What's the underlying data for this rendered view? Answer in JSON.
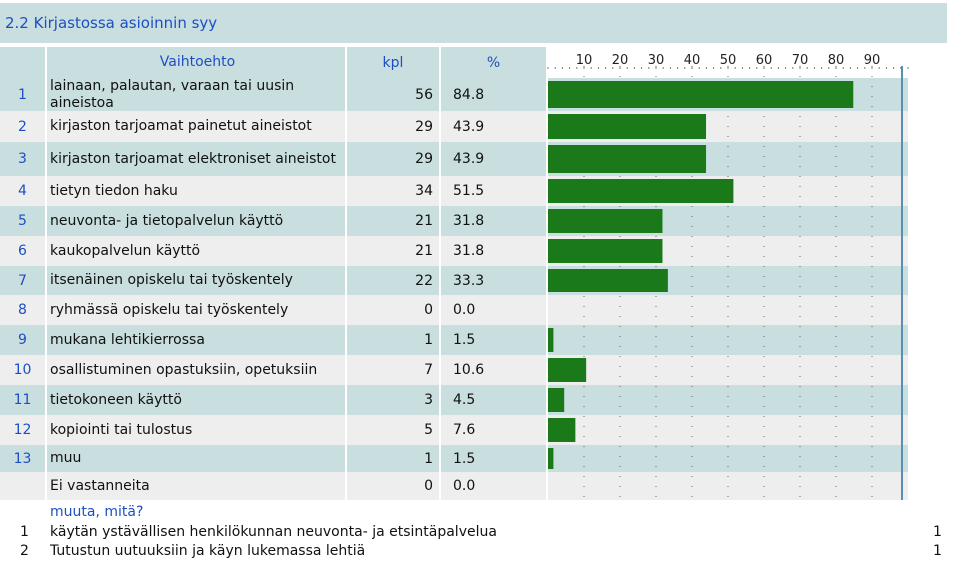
{
  "title": "2.2 Kirjastossa asioinnin syy",
  "headers": {
    "option": "Vaihtoehto",
    "count": "kpl",
    "percent": "%"
  },
  "chart_data": {
    "type": "bar",
    "orientation": "horizontal",
    "title": "2.2 Kirjastossa asioinnin syy",
    "xlim": [
      0,
      100
    ],
    "ticks": [
      10,
      20,
      30,
      40,
      50,
      60,
      70,
      80,
      90
    ],
    "bar_color": "#1a7a1a",
    "rows": [
      {
        "num": "1",
        "label": "lainaan, palautan, varaan tai uusin aineistoa",
        "kpl": "56",
        "pct": "84.8"
      },
      {
        "num": "2",
        "label": "kirjaston tarjoamat painetut aineistot",
        "kpl": "29",
        "pct": "43.9"
      },
      {
        "num": "3",
        "label": "kirjaston tarjoamat elektroniset aineistot",
        "kpl": "29",
        "pct": "43.9"
      },
      {
        "num": "4",
        "label": "tietyn tiedon haku",
        "kpl": "34",
        "pct": "51.5"
      },
      {
        "num": "5",
        "label": "neuvonta- ja tietopalvelun käyttö",
        "kpl": "21",
        "pct": "31.8"
      },
      {
        "num": "6",
        "label": "kaukopalvelun käyttö",
        "kpl": "21",
        "pct": "31.8"
      },
      {
        "num": "7",
        "label": "itsenäinen opiskelu tai työskentely",
        "kpl": "22",
        "pct": "33.3"
      },
      {
        "num": "8",
        "label": "ryhmässä opiskelu tai työskentely",
        "kpl": "0",
        "pct": "0.0"
      },
      {
        "num": "9",
        "label": "mukana lehtikierrossa",
        "kpl": "1",
        "pct": "1.5"
      },
      {
        "num": "10",
        "label": "osallistuminen opastuksiin, opetuksiin",
        "kpl": "7",
        "pct": "10.6"
      },
      {
        "num": "11",
        "label": "tietokoneen käyttö",
        "kpl": "3",
        "pct": "4.5"
      },
      {
        "num": "12",
        "label": "kopiointi tai tulostus",
        "kpl": "5",
        "pct": "7.6"
      },
      {
        "num": "13",
        "label": "muu",
        "kpl": "1",
        "pct": "1.5"
      },
      {
        "num": "",
        "label": "Ei vastanneita",
        "kpl": "0",
        "pct": "0.0"
      }
    ]
  },
  "other_answers": {
    "heading": "muuta, mitä?",
    "items": [
      {
        "num": "1",
        "text": "käytän ystävällisen henkilökunnan neuvonta- ja etsintäpalvelua",
        "count": "1"
      },
      {
        "num": "2",
        "text": "Tutustun uutuuksiin ja käyn lukemassa lehtiä",
        "count": "1"
      }
    ]
  },
  "colors": {
    "header_bg": "#c9dede",
    "row_dark": "#c9dede",
    "row_light": "#eeeeee",
    "accent_text": "#1d4fc4",
    "bar": "#1a7a1a"
  }
}
